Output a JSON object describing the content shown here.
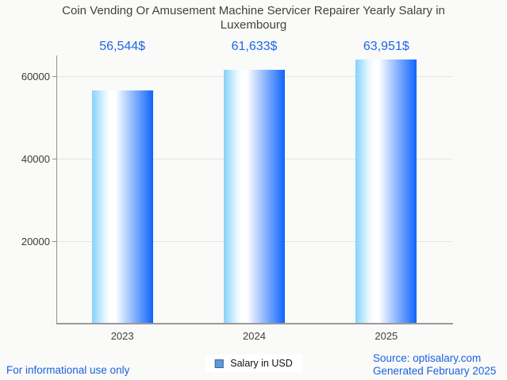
{
  "title": "Coin Vending Or Amusement Machine Servicer Repairer Yearly Salary in Luxembourg",
  "legend": {
    "label": "Salary in USD",
    "swatch_color": "#5d99dc"
  },
  "footer": {
    "left_note": "For informational use only",
    "source": "Source: optisalary.com",
    "generated": "Generated February 2025"
  },
  "colors": {
    "background": "#fafaf8",
    "value_text": "#1f66e8",
    "footer_text": "#1b62e4",
    "title_text": "#424242",
    "gridline": "#e4e4e1",
    "axis": "#8f8f8f",
    "bar_gradient_left": "#85d2f9",
    "bar_gradient_mid": "#ffffff",
    "bar_gradient_right": "#0f65fc"
  },
  "chart_data": {
    "type": "bar",
    "title": "Coin Vending Or Amusement Machine Servicer Repairer Yearly Salary in Luxembourg",
    "categories": [
      "2023",
      "2024",
      "2025"
    ],
    "values": [
      56544,
      61633,
      63951
    ],
    "value_labels": [
      "56,544$",
      "61,633$",
      "63,951$"
    ],
    "ytick_labels": [
      "20000",
      "40000",
      "60000"
    ],
    "yticks": [
      20000,
      40000,
      60000
    ],
    "ylim": [
      0,
      65000
    ],
    "xlabel": "",
    "ylabel": "",
    "grid": true,
    "legend_position": "bottom",
    "series": [
      {
        "name": "Salary in USD",
        "values": [
          56544,
          61633,
          63951
        ]
      }
    ]
  }
}
